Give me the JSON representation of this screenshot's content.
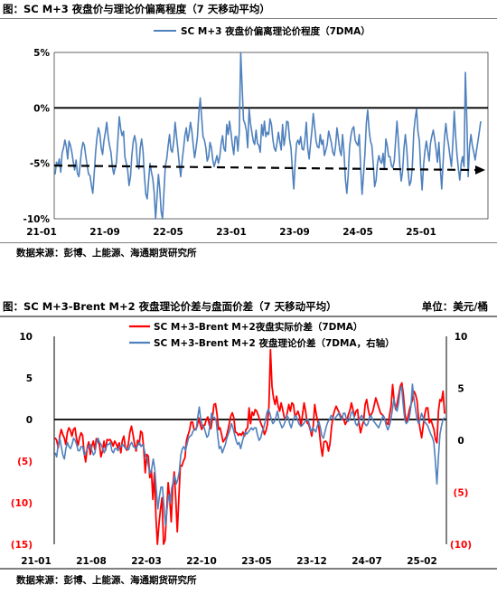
{
  "chart1": {
    "title": "图：SC M+3 夜盘价与理论价偏离程度（7 天移动平均）",
    "source": "数据来源：彭博、上能源、海通期货研究所",
    "chart_data": {
      "type": "line",
      "title": "图：SC M+3 夜盘价与理论价偏离程度（7 天移动平均）",
      "ylim": [
        -10,
        5
      ],
      "y_ticks": [
        "5%",
        "0%",
        "-5%",
        "-10%"
      ],
      "x_ticks": [
        "21-01",
        "21-09",
        "22-05",
        "23-01",
        "23-09",
        "24-05",
        "25-01"
      ],
      "series": [
        {
          "name": "SC M+3 夜盘价偏离理论价程度（7DMA）",
          "color": "#4f81bd",
          "values": [
            -6.0,
            -4.9,
            -5.2,
            -4.6,
            -5.8,
            -4.1,
            -3.6,
            -2.9,
            -3.5,
            -4.6,
            -3.0,
            -3.4,
            -4.0,
            -4.9,
            -5.6,
            -4.7,
            -5.9,
            -6.2,
            -5.0,
            -3.8,
            -3.1,
            -3.4,
            -4.4,
            -5.2,
            -6.0,
            -6.1,
            -7.0,
            -7.7,
            -6.0,
            -4.0,
            -2.7,
            -1.8,
            -2.3,
            -3.6,
            -4.2,
            -3.0,
            -2.2,
            -1.3,
            -2.6,
            -3.4,
            -4.0,
            -5.3,
            -6.0,
            -5.4,
            -4.9,
            -2.8,
            -0.8,
            -1.9,
            -2.5,
            -2.1,
            -4.4,
            -5.0,
            -5.6,
            -7.0,
            -6.2,
            -4.3,
            -3.0,
            -2.5,
            -3.2,
            -5.1,
            -5.5,
            -3.6,
            -2.8,
            -3.9,
            -6.1,
            -7.8,
            -8.2,
            -6.5,
            -5.0,
            -5.8,
            -6.4,
            -7.6,
            -10.0,
            -8.1,
            -6.0,
            -7.3,
            -9.4,
            -10.0,
            -7.5,
            -5.2,
            -4.6,
            -3.4,
            -2.4,
            -3.8,
            -4.0,
            -3.0,
            -1.3,
            -2.6,
            -3.8,
            -5.1,
            -6.2,
            -4.8,
            -3.7,
            -2.5,
            -1.8,
            -3.0,
            -2.3,
            -1.3,
            -2.1,
            -3.4,
            -4.5,
            -3.6,
            -2.6,
            -0.4,
            0.9,
            -0.8,
            -2.6,
            -2.9,
            -3.6,
            -4.8,
            -4.4,
            -3.1,
            -3.6,
            -4.7,
            -5.3,
            -4.8,
            -4.3,
            -5.0,
            -4.4,
            -3.2,
            -2.5,
            -3.7,
            -3.9,
            -1.5,
            -2.4,
            -1.2,
            -2.2,
            -3.3,
            -4.2,
            -2.6,
            -2.6,
            -3.9,
            -2.2,
            5.0,
            2.0,
            -1.1,
            -1.4,
            -2.0,
            -3.6,
            -0.1,
            -1.4,
            -2.2,
            -3.0,
            -3.3,
            -2.0,
            -3.2,
            -3.4,
            -4.0,
            -1.5,
            -2.5,
            -1.2,
            -2.6,
            -2.2,
            -2.4,
            -1.0,
            -1.5,
            -2.8,
            -3.6,
            -3.9,
            -3.2,
            -2.2,
            -3.0,
            -3.8,
            -1.5,
            -3.4,
            -2.5,
            -1.2,
            -1.3,
            -2.8,
            -3.6,
            -5.5,
            -7.3,
            -5.0,
            -3.2,
            -2.9,
            -3.3,
            -2.6,
            -3.7,
            -3.8,
            -2.9,
            -1.3,
            -3.6,
            -4.6,
            -3.3,
            -2.1,
            -0.5,
            -1.7,
            -3.0,
            -3.5,
            -3.6,
            -2.4,
            -3.3,
            -2.9,
            -4.3,
            -3.8,
            -3.3,
            -2.1,
            -2.6,
            -3.2,
            -4.0,
            -4.3,
            -3.4,
            -1.8,
            -2.8,
            -3.8,
            -4.3,
            -2.4,
            -4.0,
            -6.4,
            -7.7,
            -6.1,
            -3.6,
            -2.5,
            -1.9,
            -1.7,
            -2.9,
            -3.2,
            -3.4,
            -2.4,
            -5.5,
            -7.8,
            -6.0,
            -4.2,
            -1.4,
            -0.2,
            -2.0,
            -3.0,
            -3.4,
            -5.1,
            -7.1,
            -6.5,
            -5.0,
            -4.3,
            -4.8,
            -5.0,
            -4.1,
            -5.5,
            -2.8,
            -3.4,
            -4.4,
            -4.4,
            -5.2,
            -5.4,
            -4.8,
            -3.0,
            -1.2,
            -3.0,
            -5.1,
            -6.6,
            -5.7,
            -3.6,
            -2.4,
            -3.8,
            -5.8,
            -7.0,
            -6.6,
            -5.3,
            -2.2,
            -1.0,
            -0.1,
            -2.1,
            -3.0,
            -5.5,
            -7.4,
            -5.2,
            -3.9,
            -3.0,
            -3.8,
            -4.8,
            -3.2,
            -2.5,
            -2.0,
            -2.8,
            -3.8,
            -4.9,
            -3.1,
            -5.3,
            -7.3,
            -5.0,
            -2.8,
            -1.4,
            -2.6,
            -3.4,
            -4.4,
            -5.3,
            -3.2,
            -0.3,
            -2.5,
            -4.2,
            -5.5,
            -6.5,
            -5.0,
            -4.4,
            -5.3,
            3.2,
            -1.1,
            -6.2,
            -3.5,
            -2.4,
            -3.4,
            -4.0,
            -4.7,
            -3.8,
            -3.0,
            -2.1,
            -1.2
          ]
        },
        {
          "name": "-5%",
          "color": "#000000",
          "style": "dashed",
          "values": [
            -5.2,
            -5.6
          ]
        }
      ]
    }
  },
  "chart2": {
    "title": "图：SC M+3-Brent M+2 夜盘理论价差与盘面价差（7 天移动平均）",
    "unit": "单位：美元/桶",
    "source": "数据来源：彭博、上能源、海通期货研究所",
    "chart_data": {
      "type": "line",
      "title": "图：SC M+3-Brent M+2 夜盘理论价差与盘面价差（7 天移动平均）",
      "ylim": [
        -15,
        10
      ],
      "y2lim": [
        -10,
        10
      ],
      "y_ticks": [
        "10",
        "5",
        "0",
        "(5)",
        "(10)",
        "(15)"
      ],
      "y_tick_colors": [
        "#000000",
        "#000000",
        "#000000",
        "#ff0000",
        "#ff0000",
        "#ff0000"
      ],
      "y2_ticks": [
        "10",
        "5",
        "0",
        "(5)",
        "(10)"
      ],
      "y2_tick_colors": [
        "#000000",
        "#000000",
        "#000000",
        "#ff0000",
        "#ff0000"
      ],
      "x_ticks": [
        "21-01",
        "21-08",
        "22-03",
        "22-10",
        "23-05",
        "23-12",
        "24-07",
        "25-02"
      ],
      "series": [
        {
          "name": "SC M+3-Brent M+2夜盘实际价差（7DMA）",
          "color": "#ff0000",
          "axis": "left",
          "values": [
            -2.2,
            -2.5,
            -3.4,
            -2.0,
            -1.2,
            -1.8,
            -2.2,
            -3.0,
            -1.6,
            -1.0,
            -1.3,
            -2.0,
            -1.2,
            -1.0,
            -2.3,
            -3.1,
            -2.2,
            -1.6,
            -1.9,
            -4.0,
            -5.1,
            -3.4,
            -2.7,
            -4.2,
            -3.2,
            -2.6,
            -3.6,
            -2.3,
            -2.6,
            -3.0,
            -4.5,
            -3.8,
            -2.6,
            -3.7,
            -2.4,
            -2.5,
            -2.4,
            -2.7,
            -3.2,
            -2.6,
            -2.9,
            -3.4,
            -2.8,
            -4.0,
            -2.5,
            -2.0,
            -3.4,
            -3.7,
            -2.9,
            -1.5,
            -0.8,
            -1.8,
            -2.9,
            -3.8,
            -2.5,
            -3.0,
            -1.4,
            -1.6,
            -3.4,
            -6.4,
            -4.2,
            -4.4,
            -7.0,
            -6.1,
            -9.6,
            -6.4,
            -11.8,
            -15.0,
            -12.6,
            -10.8,
            -9.4,
            -15.0,
            -14.5,
            -11.2,
            -7.6,
            -9.5,
            -12.3,
            -8.2,
            -6.3,
            -9.5,
            -13.5,
            -9.5,
            -5.5,
            -5.6,
            -5.0,
            -4.6,
            -2.5,
            -1.9,
            -1.3,
            -0.3,
            -0.3,
            -1.2,
            -1.2,
            -0.8,
            0.2,
            -0.6,
            -1.2,
            -0.7,
            -0.7,
            0.0,
            0.3,
            -0.7,
            -1.1,
            0.2,
            1.8,
            1.9,
            0.6,
            -1.2,
            -1.0,
            -1.8,
            -2.7,
            -2.4,
            -2.1,
            -1.4,
            -0.5,
            0.4,
            0.8,
            0.2,
            -1.5,
            -1.6,
            -1.9,
            -1.7,
            -1.9,
            -1.5,
            -2.0,
            -1.2,
            -1.0,
            1.4,
            -0.5,
            0.9,
            0.5,
            1.2,
            1.0,
            0.5,
            -0.1,
            -0.6,
            -1.0,
            -1.8,
            -1.4,
            -0.6,
            1.6,
            8.4,
            4.0,
            2.6,
            1.8,
            2.8,
            1.6,
            1.0,
            2.0,
            1.2,
            0.3,
            0.0,
            0.8,
            1.8,
            1.0,
            2.0,
            1.8,
            0.4,
            0.6,
            1.0,
            0.4,
            -0.8,
            0.6,
            2.0,
            1.0,
            -0.4,
            -0.6,
            -1.2,
            -2.0,
            -0.8,
            1.8,
            0.6,
            -0.2,
            -1.4,
            -3.2,
            -4.4,
            -2.7,
            -2.6,
            -2.8,
            -3.8,
            -2.9,
            -0.9,
            0.4,
            1.1,
            1.6,
            1.2,
            0.8,
            0.4,
            0.2,
            0.0,
            -0.6,
            -0.2,
            0.6,
            1.1,
            2.0,
            1.2,
            0.4,
            1.0,
            1.2,
            -0.4,
            -1.6,
            -0.8,
            -0.2,
            1.8,
            2.4,
            1.2,
            0.4,
            0.6,
            1.0,
            1.8,
            2.6,
            2.0,
            1.4,
            0.8,
            0.6,
            0.4,
            0.0,
            -0.4,
            -0.6,
            0.6,
            1.6,
            4.2,
            2.2,
            1.2,
            2.0,
            3.0,
            4.0,
            4.4,
            3.0,
            0.8,
            -0.4,
            0.3,
            1.2,
            1.8,
            2.4,
            3.4,
            3.0,
            2.2,
            0.0,
            -1.2,
            -2.2,
            -0.8,
            0.6,
            1.4,
            1.4,
            -0.4,
            0.0,
            -0.6,
            -1.2,
            -2.4,
            -2.8,
            1.0,
            2.4,
            2.2,
            3.4,
            0.7
          ]
        },
        {
          "name": "SC M+3-Brent M+2 夜盘理论价差（7DMA，右轴）",
          "color": "#4f81bd",
          "axis": "right",
          "values": [
            -1.2,
            -1.6,
            -0.4,
            0.2,
            -0.6,
            -1.4,
            -1.8,
            -0.8,
            -0.2,
            -0.6,
            -0.8,
            -0.4,
            0.2,
            0.0,
            -0.4,
            -1.0,
            -1.0,
            -0.6,
            -0.6,
            -1.4,
            -1.2,
            -0.8,
            -0.6,
            -0.4,
            -1.0,
            -1.4,
            -1.2,
            -0.2,
            0.2,
            -0.2,
            -0.4,
            -0.8,
            -1.2,
            -0.8,
            -0.4,
            -0.4,
            -0.2,
            -1.0,
            -1.2,
            -0.8,
            -0.8,
            -1.0,
            -0.6,
            -0.6,
            -0.4,
            -0.6,
            -0.8,
            -0.8,
            -0.9,
            -0.4,
            -0.2,
            -0.6,
            -0.7,
            -0.8,
            -0.4,
            -0.2,
            -0.6,
            -0.4,
            -0.8,
            -1.5,
            -1.8,
            -2.6,
            -3.2,
            -2.7,
            -1.8,
            -2.8,
            -4.8,
            -6.6,
            -5.4,
            -4.5,
            -4.5,
            -6.4,
            -8.2,
            -6.6,
            -5.2,
            -6.0,
            -4.6,
            -4.0,
            -3.4,
            -4.2,
            -3.8,
            -3.0,
            -1.4,
            -0.8,
            -0.6,
            -1.0,
            -0.4,
            0.2,
            0.4,
            0.5,
            0.9,
            1.0,
            1.0,
            2.2,
            3.2,
            2.0,
            1.4,
            1.3,
            0.8,
            0.3,
            0.5,
            1.5,
            2.6,
            2.2,
            2.2,
            1.9,
            0.5,
            -0.8,
            -0.6,
            -1.2,
            -0.8,
            -0.4,
            0.2,
            0.6,
            1.0,
            1.6,
            1.2,
            0.6,
            0.0,
            -0.4,
            -0.2,
            -0.8,
            -0.2,
            0.4,
            0.8,
            0.6,
            0.8,
            1.0,
            1.2,
            1.0,
            1.2,
            1.2,
            0.5,
            0.0,
            0.2,
            0.8,
            1.2,
            1.8,
            2.6,
            3.0,
            2.6,
            2.0,
            1.6,
            1.8,
            2.2,
            2.8,
            2.0,
            1.6,
            1.2,
            1.4,
            1.8,
            2.4,
            2.2,
            1.6,
            1.2,
            1.8,
            2.2,
            2.4,
            2.0,
            1.6,
            1.4,
            1.4,
            1.6,
            1.8,
            2.0,
            2.0,
            1.4,
            0.8,
            1.2,
            1.0,
            0.8,
            1.4,
            1.8,
            1.2,
            0.4,
            0.2,
            0.8,
            1.4,
            1.8,
            2.0,
            2.4,
            2.2,
            2.0,
            2.2,
            2.4,
            2.6,
            2.2,
            2.0,
            2.6,
            2.6,
            2.0,
            1.8,
            2.0,
            2.6,
            2.8,
            2.2,
            1.6,
            1.4,
            1.8,
            2.2,
            2.4,
            2.0,
            1.6,
            1.4,
            1.6,
            2.2,
            2.4,
            2.0,
            1.8,
            1.6,
            1.4,
            1.2,
            1.6,
            2.0,
            2.4,
            2.0,
            1.4,
            1.0,
            1.4,
            2.0,
            3.0,
            4.0,
            3.2,
            2.8,
            3.6,
            4.8,
            5.2,
            3.4,
            2.0,
            1.6,
            1.8,
            2.2,
            3.2,
            5.4,
            4.0,
            3.0,
            2.0,
            1.6,
            2.0,
            2.6,
            2.2,
            1.8,
            1.6,
            1.4,
            1.0,
            0.6,
            0.3,
            -0.2,
            -2.0,
            -4.2,
            -1.6,
            0.6,
            1.4,
            2.0,
            2.2
          ]
        }
      ]
    }
  }
}
